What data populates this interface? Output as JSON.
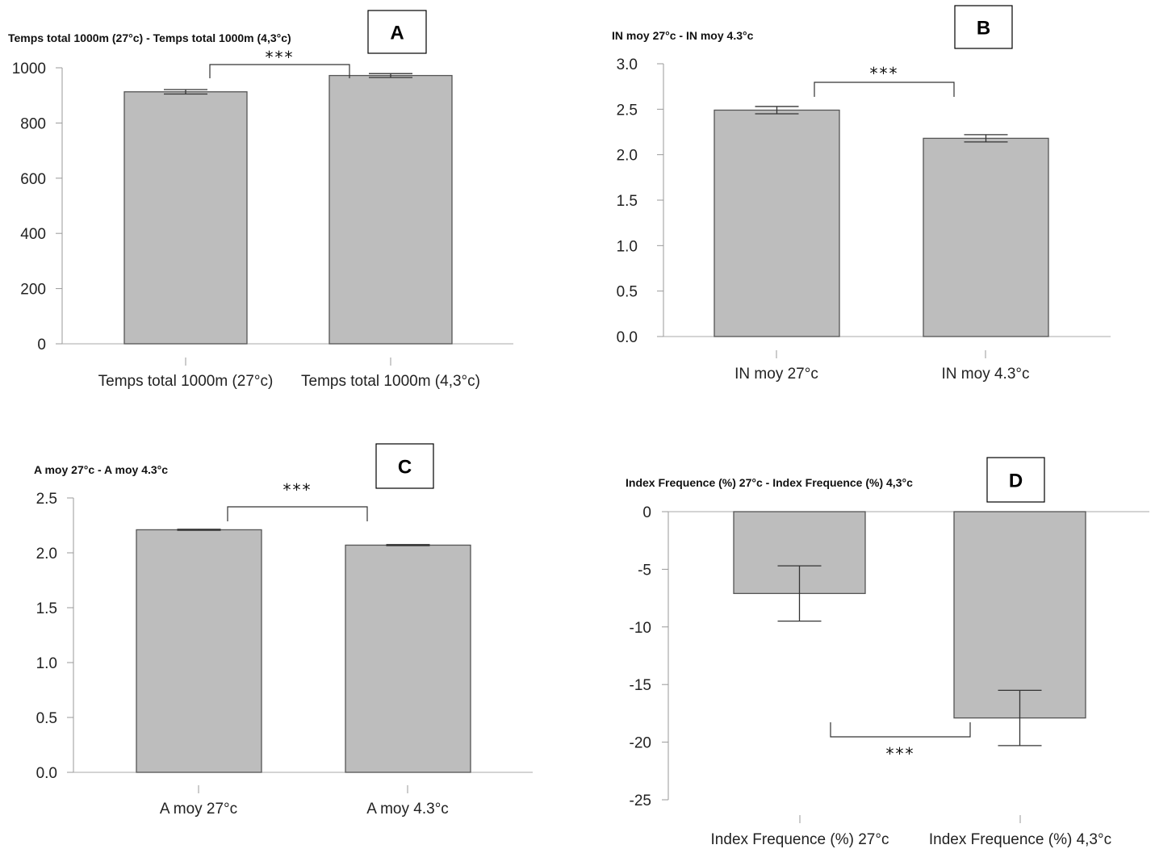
{
  "chart_data": [
    {
      "type": "bar",
      "panel_letter": "A",
      "title": "Temps total 1000m (27°c) - Temps total 1000m (4,3°c)",
      "categories": [
        "Temps total 1000m (27°c)",
        "Temps total 1000m (4,3°c)"
      ],
      "values": [
        913,
        972
      ],
      "error": [
        [
          905,
          921
        ],
        [
          965,
          979
        ]
      ],
      "ylim": [
        0,
        1000
      ],
      "yticks": [
        0,
        200,
        400,
        600,
        800,
        1000
      ],
      "ytick_labels": [
        "0",
        "200",
        "400",
        "600",
        "800",
        "1000"
      ],
      "significance": "***",
      "bar_color": "#bdbdbd",
      "grid": false
    },
    {
      "type": "bar",
      "panel_letter": "B",
      "title": "IN moy 27°c - IN moy 4.3°c",
      "categories": [
        "IN moy 27°c",
        "IN moy 4.3°c"
      ],
      "values": [
        2.49,
        2.18
      ],
      "error": [
        [
          2.45,
          2.53
        ],
        [
          2.14,
          2.22
        ]
      ],
      "ylim": [
        0,
        3
      ],
      "yticks": [
        0,
        0.5,
        1,
        1.5,
        2,
        2.5,
        3
      ],
      "ytick_labels": [
        "0.0",
        "0.5",
        "1.0",
        "1.5",
        "2.0",
        "2.5",
        "3.0"
      ],
      "significance": "***",
      "bar_color": "#bdbdbd",
      "grid": false
    },
    {
      "type": "bar",
      "panel_letter": "C",
      "title": "A moy 27°c - A moy 4.3°c",
      "categories": [
        "A moy 27°c",
        "A moy 4.3°c"
      ],
      "values": [
        2.21,
        2.07
      ],
      "error": [
        [
          2.205,
          2.215
        ],
        [
          2.065,
          2.075
        ]
      ],
      "ylim": [
        0,
        2.5
      ],
      "yticks": [
        0,
        0.5,
        1,
        1.5,
        2,
        2.5
      ],
      "ytick_labels": [
        "0.0",
        "0.5",
        "1.0",
        "1.5",
        "2.0",
        "2.5"
      ],
      "significance": "***",
      "bar_color": "#bdbdbd",
      "grid": false
    },
    {
      "type": "bar",
      "panel_letter": "D",
      "title": "Index Frequence (%) 27°c - Index Frequence (%) 4,3°c",
      "categories": [
        "Index Frequence (%) 27°c",
        "Index Frequence (%) 4,3°c"
      ],
      "values": [
        -7.1,
        -17.9
      ],
      "error": [
        [
          -9.5,
          -4.7
        ],
        [
          -20.3,
          -15.5
        ]
      ],
      "ylim": [
        -25,
        0
      ],
      "yticks": [
        -25,
        -20,
        -15,
        -10,
        -5,
        0
      ],
      "ytick_labels": [
        "-25",
        "-20",
        "-15",
        "-10",
        "-5",
        "0"
      ],
      "significance": "***",
      "bar_color": "#bdbdbd",
      "grid": false
    }
  ]
}
